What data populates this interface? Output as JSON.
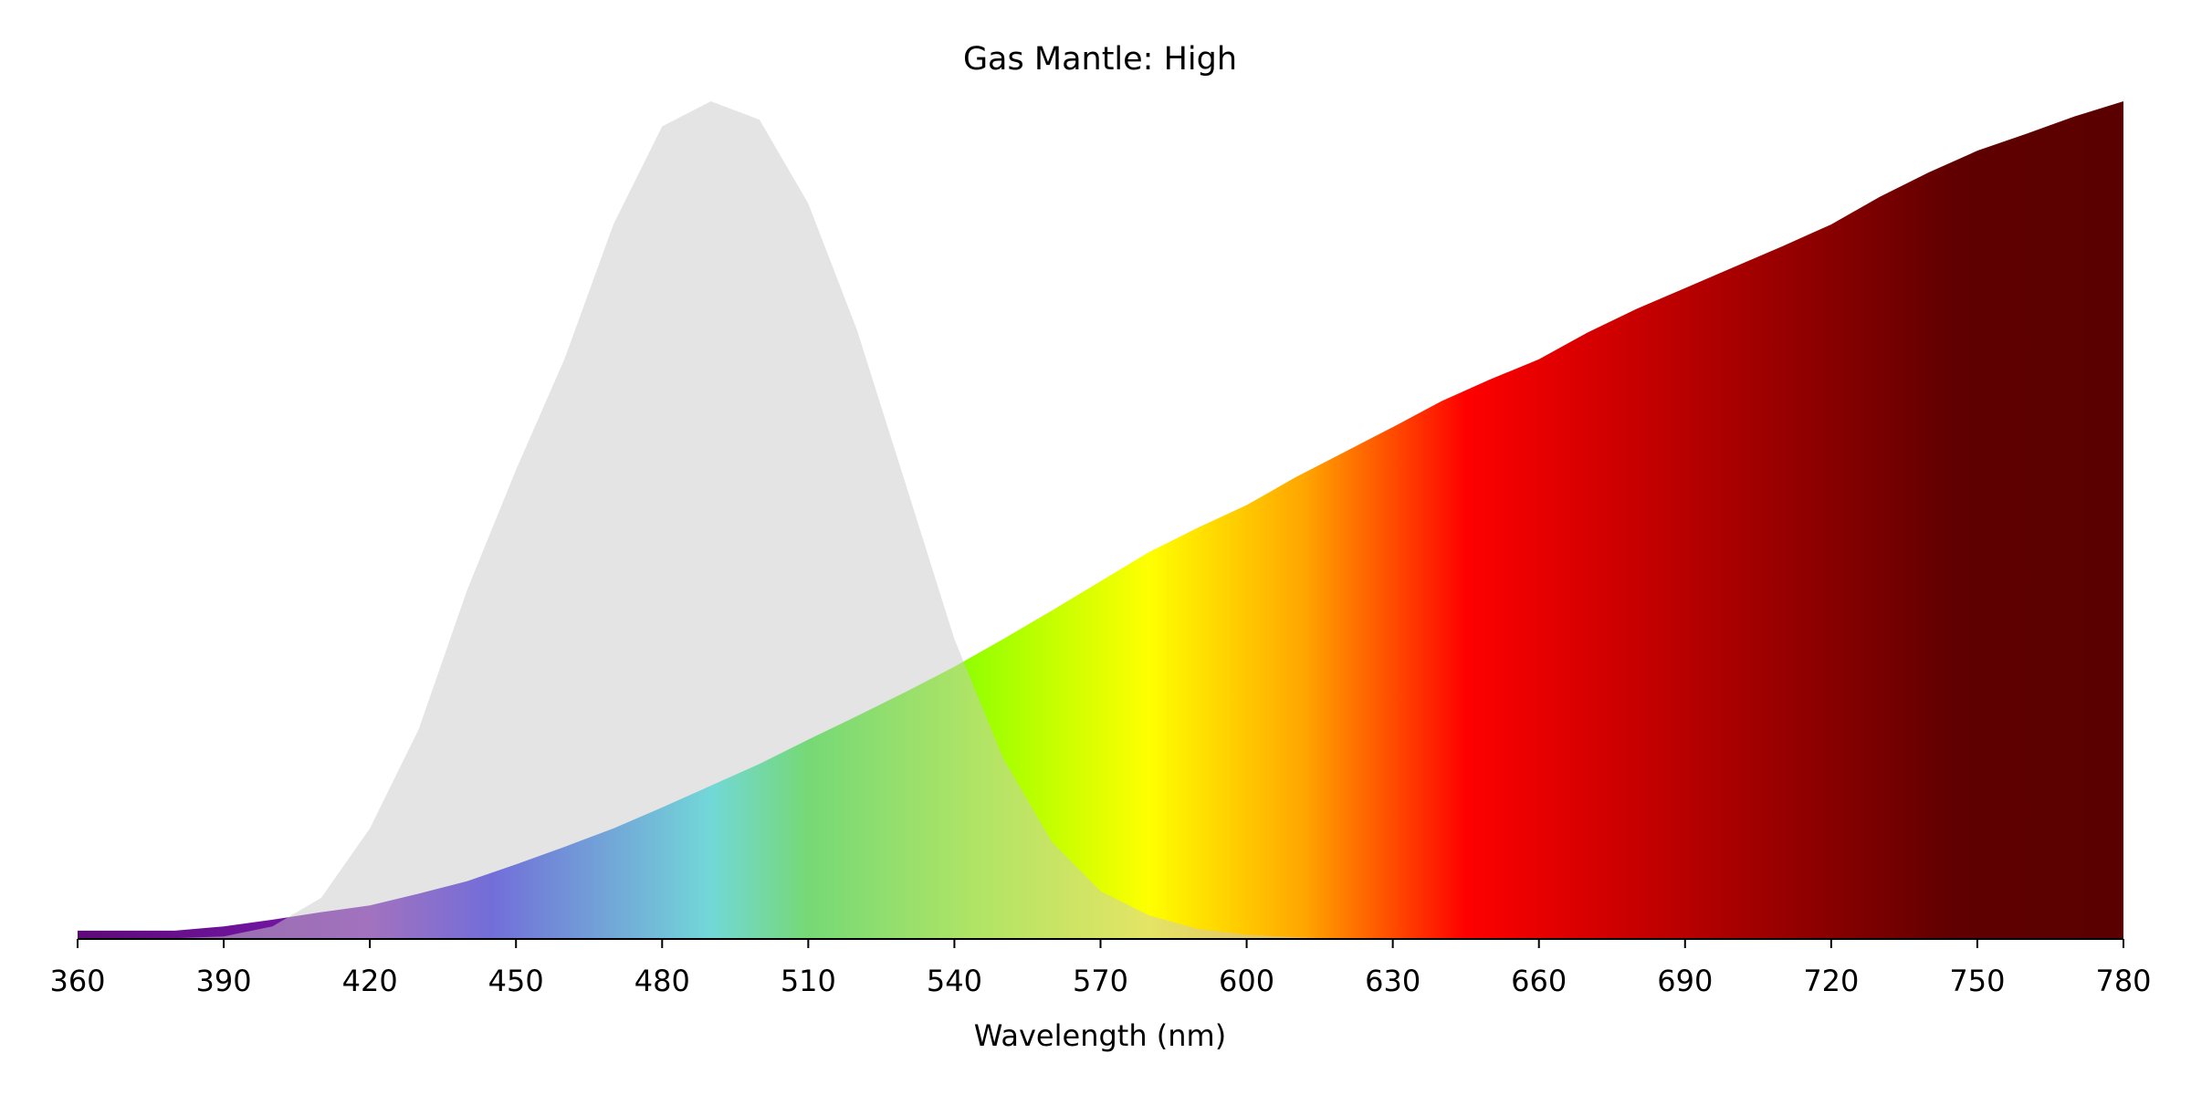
{
  "chart_data": {
    "type": "area",
    "title": "Gas Mantle: High",
    "x_label": "Wavelength (nm)",
    "x": [
      360,
      370,
      380,
      390,
      400,
      410,
      420,
      430,
      440,
      450,
      460,
      470,
      480,
      490,
      500,
      510,
      520,
      530,
      540,
      550,
      560,
      570,
      580,
      590,
      600,
      610,
      620,
      630,
      640,
      650,
      660,
      670,
      680,
      690,
      700,
      710,
      720,
      730,
      740,
      750,
      760,
      770,
      780
    ],
    "series": [
      {
        "color": "gradient",
        "opacity": 1,
        "values": [
          0.01,
          0.01,
          0.01,
          0.015,
          0.023,
          0.032,
          0.04,
          0.054,
          0.069,
          0.089,
          0.11,
          0.132,
          0.157,
          0.183,
          0.209,
          0.238,
          0.266,
          0.295,
          0.325,
          0.358,
          0.392,
          0.427,
          0.462,
          0.491,
          0.518,
          0.551,
          0.581,
          0.611,
          0.642,
          0.668,
          0.692,
          0.724,
          0.752,
          0.777,
          0.802,
          0.827,
          0.853,
          0.886,
          0.915,
          0.941,
          0.961,
          0.982,
          1.0
        ]
      },
      {
        "color": "#c9c9c9",
        "opacity": 0.5,
        "values": [
          0,
          0,
          0.001,
          0.003,
          0.015,
          0.049,
          0.132,
          0.25,
          0.417,
          0.56,
          0.693,
          0.853,
          0.97,
          1.0,
          0.978,
          0.878,
          0.727,
          0.543,
          0.358,
          0.216,
          0.116,
          0.057,
          0.028,
          0.012,
          0.005,
          0.002,
          0,
          0,
          0,
          0,
          0,
          0,
          0,
          0,
          0,
          0,
          0,
          0,
          0,
          0,
          0,
          0,
          0
        ]
      }
    ],
    "gradient": [
      {
        "x": 360,
        "color": "#5e0a78"
      },
      {
        "x": 420,
        "color": "#7a1ab4"
      },
      {
        "x": 445,
        "color": "#1a12e8"
      },
      {
        "x": 475,
        "color": "#1a9ee6"
      },
      {
        "x": 490,
        "color": "#1ae6e6"
      },
      {
        "x": 510,
        "color": "#22e822"
      },
      {
        "x": 545,
        "color": "#99ff00"
      },
      {
        "x": 580,
        "color": "#ffff00"
      },
      {
        "x": 612,
        "color": "#ffa500"
      },
      {
        "x": 645,
        "color": "#ff0000"
      },
      {
        "x": 700,
        "color": "#a80000"
      },
      {
        "x": 745,
        "color": "#600000"
      },
      {
        "x": 780,
        "color": "#5a0000"
      }
    ],
    "xlim": [
      360,
      780
    ],
    "ylim": [
      0,
      1
    ],
    "xticks": [
      360,
      390,
      420,
      450,
      480,
      510,
      540,
      570,
      600,
      630,
      660,
      690,
      720,
      750,
      780
    ]
  }
}
